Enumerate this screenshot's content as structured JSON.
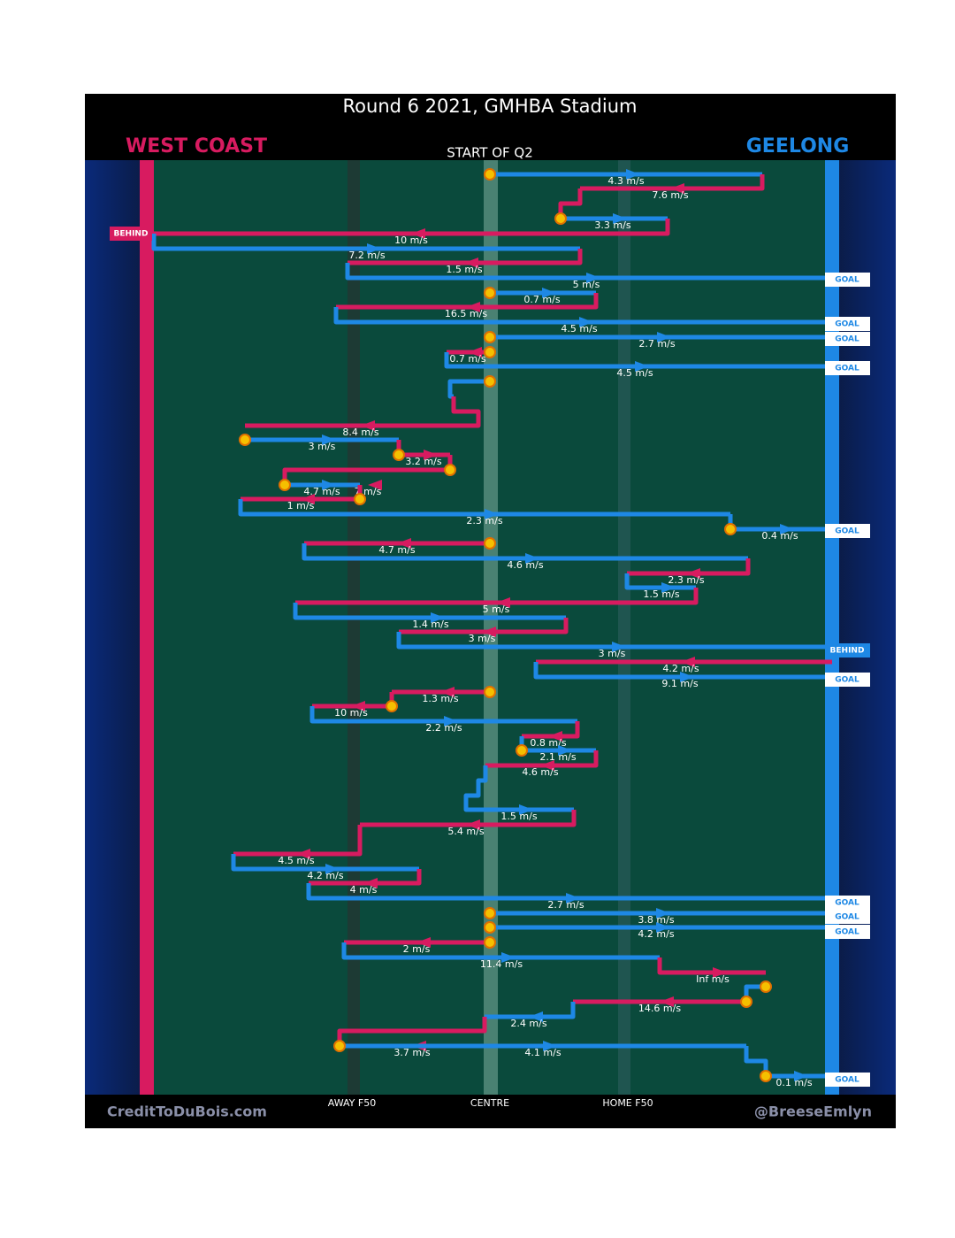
{
  "header": {
    "title": "Round 6 2021, GMHBA Stadium",
    "subtitle": "START OF Q2",
    "team_left": "WEST COAST",
    "team_right": "GEELONG"
  },
  "axis_labels": [
    "AWAY F50",
    "CENTRE",
    "HOME F50"
  ],
  "footer": {
    "left": "CreditToDuBois.com",
    "right": "@BreeseEmlyn"
  },
  "speeds": [
    "4.3 m/s",
    "7.6 m/s",
    "3.3 m/s",
    "10 m/s",
    "7.2 m/s",
    "1.5 m/s",
    "5 m/s",
    "0.7 m/s",
    "16.5 m/s",
    "4.5 m/s",
    "2.7 m/s",
    "0.7 m/s",
    "4.5 m/s",
    "8.4 m/s",
    "3 m/s",
    "3.2 m/s",
    "7 m/s",
    "4.7 m/s",
    "1 m/s",
    "2.3 m/s",
    "0.4 m/s",
    "4.7 m/s",
    "4.6 m/s",
    "2.3 m/s",
    "1.5 m/s",
    "5 m/s",
    "1.4 m/s",
    "3 m/s",
    "3 m/s",
    "4.2 m/s",
    "9.1 m/s",
    "1.3 m/s",
    "10 m/s",
    "2.2 m/s",
    "0.8 m/s",
    "2.1 m/s",
    "4.6 m/s",
    "1.5 m/s",
    "5.4 m/s",
    "4.5 m/s",
    "4.2 m/s",
    "4 m/s",
    "2.7 m/s",
    "3.8 m/s",
    "4.2 m/s",
    "2 m/s",
    "11.4 m/s",
    "Inf m/s",
    "14.6 m/s",
    "2.4 m/s",
    "3.7 m/s",
    "4.1 m/s",
    "0.1 m/s"
  ],
  "outcomes": [
    "BEHIND",
    "GOAL",
    "GOAL",
    "GOAL",
    "GOAL",
    "GOAL",
    "BEHIND",
    "GOAL",
    "GOAL",
    "GOAL",
    "GOAL",
    "GOAL"
  ]
}
